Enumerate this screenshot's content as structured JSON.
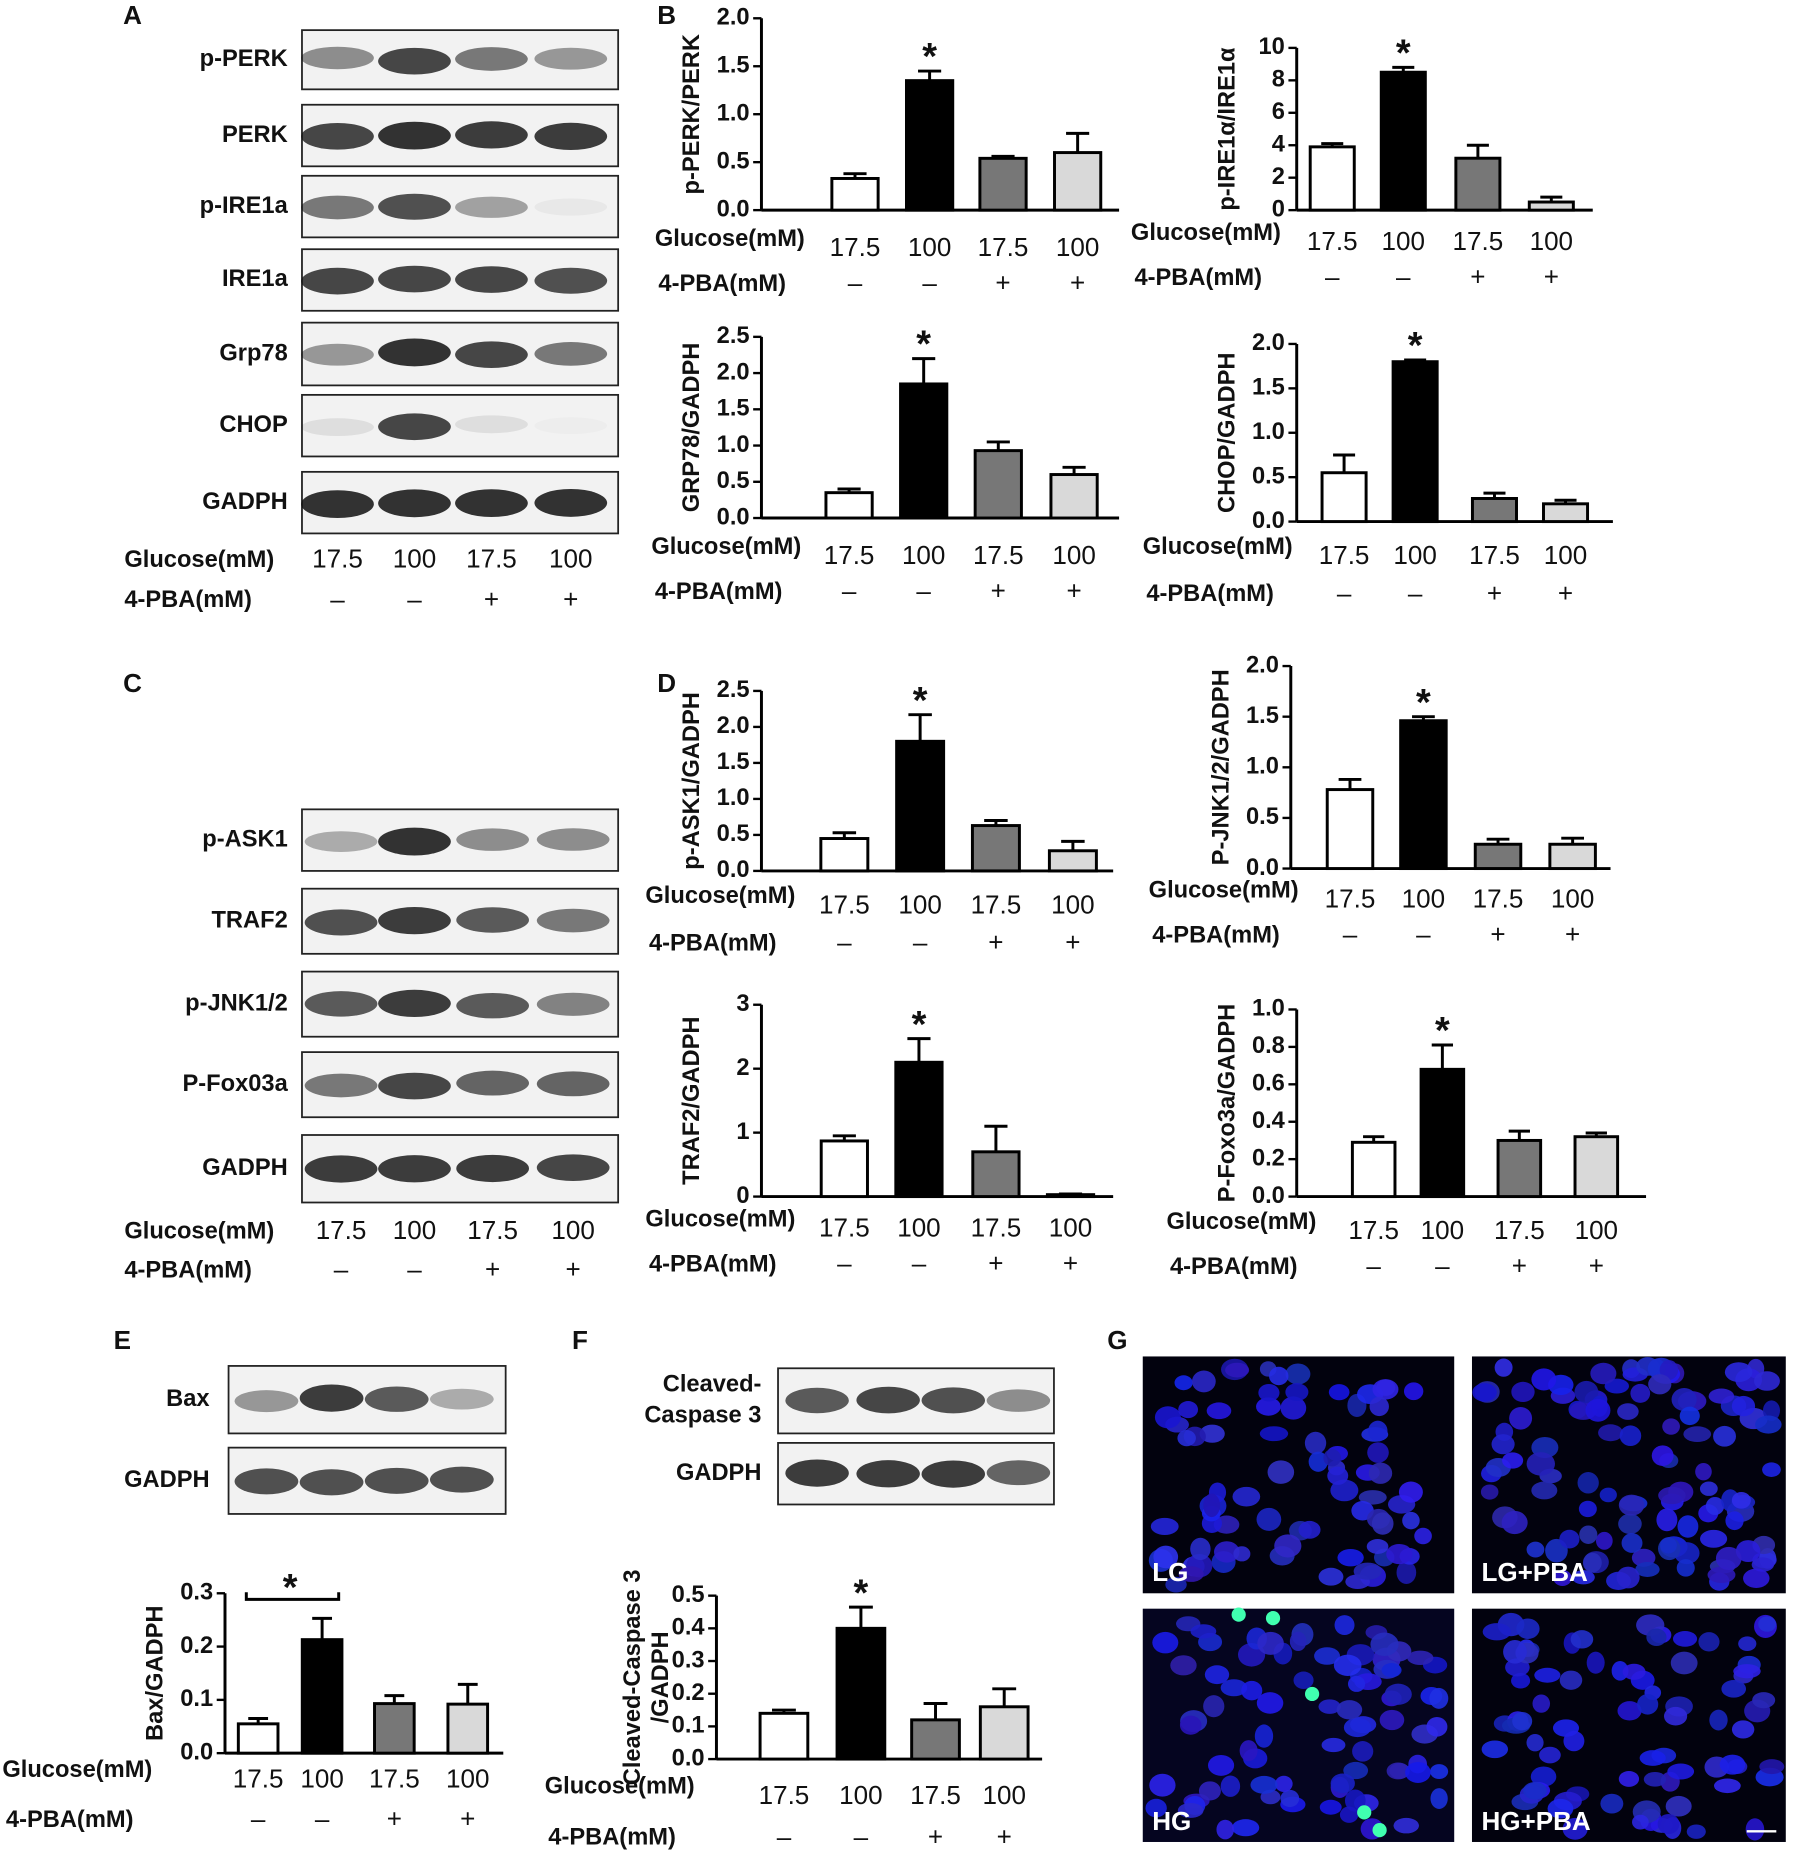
{
  "panel_labels": [
    "A",
    "B",
    "C",
    "D",
    "E",
    "F",
    "G"
  ],
  "blots": [
    {
      "bands": [
        "p-PERK",
        "PERK",
        "p-IRE1a",
        "IRE1a",
        "Grp78",
        "CHOP",
        "GADPH"
      ],
      "glucose_label": "Glucose(mM)",
      "glucose": [
        "17.5",
        "100",
        "17.5",
        "100"
      ],
      "treatment_label": "4-PBA(mM)",
      "treatment": [
        "–",
        "–",
        "+",
        "+"
      ]
    },
    {
      "bands": [
        "p-ASK1",
        "TRAF2",
        "p-JNK1/2",
        "P-Fox03a",
        "GADPH"
      ],
      "glucose_label": "Glucose(mM)",
      "glucose": [
        "17.5",
        "100",
        "17.5",
        "100"
      ],
      "treatment_label": "4-PBA(mM)",
      "treatment": [
        "–",
        "–",
        "+",
        "+"
      ]
    },
    {
      "bands": [
        "Bax",
        "GADPH"
      ]
    },
    {
      "bands": [
        [
          "Cleaved-",
          "Caspase 3"
        ],
        "GADPH"
      ]
    }
  ],
  "images": [
    "LG",
    "LG+PBA",
    "HG",
    "HG+PBA"
  ],
  "chart_data": [
    {
      "type": "bar",
      "ylabel": "p-PERK/PERK",
      "categories": [
        "17.5",
        "100",
        "17.5",
        "100"
      ],
      "category_label": "Glucose(mM)",
      "treatment_label": "4-PBA(mM)",
      "treatment": [
        "–",
        "–",
        "+",
        "+"
      ],
      "values": [
        0.33,
        1.35,
        0.54,
        0.6
      ],
      "errors": [
        0.05,
        0.1,
        0.02,
        0.2
      ],
      "colors": [
        "#ffffff",
        "#000000",
        "#777777",
        "#d9d9d9"
      ],
      "ylim": [
        0,
        2
      ],
      "yticks": [
        {
          "value": 0,
          "label": "0.0"
        },
        0.5,
        {
          "value": 1,
          "label": "1.0"
        },
        1.5,
        {
          "value": 2,
          "label": "2.0"
        }
      ],
      "annotation": "*"
    },
    {
      "type": "bar",
      "ylabel": "p-IRE1α/IRE1α",
      "categories": [
        "17.5",
        "100",
        "17.5",
        "100"
      ],
      "category_label": "Glucose(mM)",
      "treatment_label": "4-PBA(mM)",
      "treatment": [
        "–",
        "–",
        "+",
        "+"
      ],
      "values": [
        3.9,
        8.5,
        3.2,
        0.5
      ],
      "errors": [
        0.2,
        0.3,
        0.8,
        0.3
      ],
      "colors": [
        "#ffffff",
        "#000000",
        "#777777",
        "#d9d9d9"
      ],
      "ylim": [
        0,
        10
      ],
      "yticks": [
        0,
        2,
        4,
        6,
        8,
        10
      ],
      "annotation": "*"
    },
    {
      "type": "bar",
      "ylabel": "GRP78/GADPH",
      "categories": [
        "17.5",
        "100",
        "17.5",
        "100"
      ],
      "category_label": "Glucose(mM)",
      "treatment_label": "4-PBA(mM)",
      "treatment": [
        "–",
        "–",
        "+",
        "+"
      ],
      "values": [
        0.35,
        1.85,
        0.93,
        0.6
      ],
      "errors": [
        0.05,
        0.35,
        0.12,
        0.1
      ],
      "colors": [
        "#ffffff",
        "#000000",
        "#777777",
        "#d9d9d9"
      ],
      "ylim": [
        0,
        2.5
      ],
      "yticks": [
        {
          "value": 0,
          "label": "0.0"
        },
        0.5,
        {
          "value": 1,
          "label": "1.0"
        },
        1.5,
        {
          "value": 2,
          "label": "2.0"
        },
        2.5
      ],
      "annotation": "*"
    },
    {
      "type": "bar",
      "ylabel": "CHOP/GADPH",
      "categories": [
        "17.5",
        "100",
        "17.5",
        "100"
      ],
      "category_label": "Glucose(mM)",
      "treatment_label": "4-PBA(mM)",
      "treatment": [
        "–",
        "–",
        "+",
        "+"
      ],
      "values": [
        0.55,
        1.8,
        0.26,
        0.2
      ],
      "errors": [
        0.2,
        0.02,
        0.06,
        0.04
      ],
      "colors": [
        "#ffffff",
        "#000000",
        "#777777",
        "#d9d9d9"
      ],
      "ylim": [
        0,
        2
      ],
      "yticks": [
        {
          "value": 0,
          "label": "0.0"
        },
        0.5,
        {
          "value": 1,
          "label": "1.0"
        },
        1.5,
        {
          "value": 2,
          "label": "2.0"
        }
      ],
      "annotation": "*"
    },
    {
      "type": "bar",
      "ylabel": "p-ASK1/GADPH",
      "categories": [
        "17.5",
        "100",
        "17.5",
        "100"
      ],
      "category_label": "Glucose(mM)",
      "treatment_label": "4-PBA(mM)",
      "treatment": [
        "–",
        "–",
        "+",
        "+"
      ],
      "values": [
        0.45,
        1.8,
        0.63,
        0.28
      ],
      "errors": [
        0.08,
        0.37,
        0.07,
        0.13
      ],
      "colors": [
        "#ffffff",
        "#000000",
        "#777777",
        "#d9d9d9"
      ],
      "ylim": [
        0,
        2.5
      ],
      "yticks": [
        {
          "value": 0,
          "label": "0.0"
        },
        0.5,
        {
          "value": 1,
          "label": "1.0"
        },
        1.5,
        {
          "value": 2,
          "label": "2.0"
        },
        2.5
      ],
      "annotation": "*"
    },
    {
      "type": "bar",
      "ylabel": "P-JNK1/2/GADPH",
      "categories": [
        "17.5",
        "100",
        "17.5",
        "100"
      ],
      "category_label": "Glucose(mM)",
      "treatment_label": "4-PBA(mM)",
      "treatment": [
        "–",
        "–",
        "+",
        "+"
      ],
      "values": [
        0.78,
        1.46,
        0.24,
        0.24
      ],
      "errors": [
        0.1,
        0.04,
        0.05,
        0.06
      ],
      "colors": [
        "#ffffff",
        "#000000",
        "#777777",
        "#d9d9d9"
      ],
      "ylim": [
        0,
        2
      ],
      "yticks": [
        {
          "value": 0,
          "label": "0.0"
        },
        0.5,
        {
          "value": 1,
          "label": "1.0"
        },
        1.5,
        {
          "value": 2,
          "label": "2.0"
        }
      ],
      "annotation": "*"
    },
    {
      "type": "bar",
      "ylabel": "TRAF2/GADPH",
      "categories": [
        "17.5",
        "100",
        "17.5",
        "100"
      ],
      "category_label": "Glucose(mM)",
      "treatment_label": "4-PBA(mM)",
      "treatment": [
        "–",
        "–",
        "+",
        "+"
      ],
      "values": [
        0.87,
        2.1,
        0.7,
        0.03
      ],
      "errors": [
        0.08,
        0.37,
        0.4,
        0.01
      ],
      "colors": [
        "#ffffff",
        "#000000",
        "#777777",
        "#d9d9d9"
      ],
      "ylim": [
        0,
        3
      ],
      "yticks": [
        0,
        1,
        2,
        3
      ],
      "annotation": "*"
    },
    {
      "type": "bar",
      "ylabel": "P-Foxo3a/GADPH",
      "categories": [
        "17.5",
        "100",
        "17.5",
        "100"
      ],
      "category_label": "Glucose(mM)",
      "treatment_label": "4-PBA(mM)",
      "treatment": [
        "–",
        "–",
        "+",
        "+"
      ],
      "values": [
        0.29,
        0.68,
        0.3,
        0.32
      ],
      "errors": [
        0.03,
        0.13,
        0.05,
        0.02
      ],
      "colors": [
        "#ffffff",
        "#000000",
        "#777777",
        "#d9d9d9"
      ],
      "ylim": [
        0,
        1
      ],
      "yticks": [
        {
          "value": 0,
          "label": "0.0"
        },
        0.2,
        0.4,
        0.6,
        0.8,
        {
          "value": 1,
          "label": "1.0"
        }
      ],
      "annotation": "*"
    },
    {
      "type": "bar",
      "ylabel": "Bax/GADPH",
      "categories": [
        "17.5",
        "100",
        "17.5",
        "100"
      ],
      "category_label": "Glucose(mM)",
      "treatment_label": "4-PBA(mM)",
      "treatment": [
        "–",
        "–",
        "+",
        "+"
      ],
      "values": [
        0.055,
        0.213,
        0.093,
        0.092
      ],
      "errors": [
        0.01,
        0.04,
        0.015,
        0.037
      ],
      "colors": [
        "#ffffff",
        "#000000",
        "#777777",
        "#d9d9d9"
      ],
      "ylim": [
        0,
        0.3
      ],
      "yticks": [
        {
          "value": 0,
          "label": "0.0"
        },
        0.1,
        0.2,
        0.3
      ],
      "annotation": "*",
      "annotation_bracket": true
    },
    {
      "type": "bar",
      "ylabel": [
        "Cleaved-Caspase 3",
        "/GADPH"
      ],
      "categories": [
        "17.5",
        "100",
        "17.5",
        "100"
      ],
      "category_label": "Glucose(mM)",
      "treatment_label": "4-PBA(mM)",
      "treatment": [
        "–",
        "–",
        "+",
        "+"
      ],
      "values": [
        0.14,
        0.4,
        0.12,
        0.16
      ],
      "errors": [
        0.01,
        0.065,
        0.05,
        0.055
      ],
      "colors": [
        "#ffffff",
        "#000000",
        "#777777",
        "#d9d9d9"
      ],
      "ylim": [
        0,
        0.5
      ],
      "yticks": [
        {
          "value": 0,
          "label": "0.0"
        },
        0.1,
        0.2,
        0.3,
        0.4,
        0.5
      ],
      "annotation": "*"
    }
  ]
}
